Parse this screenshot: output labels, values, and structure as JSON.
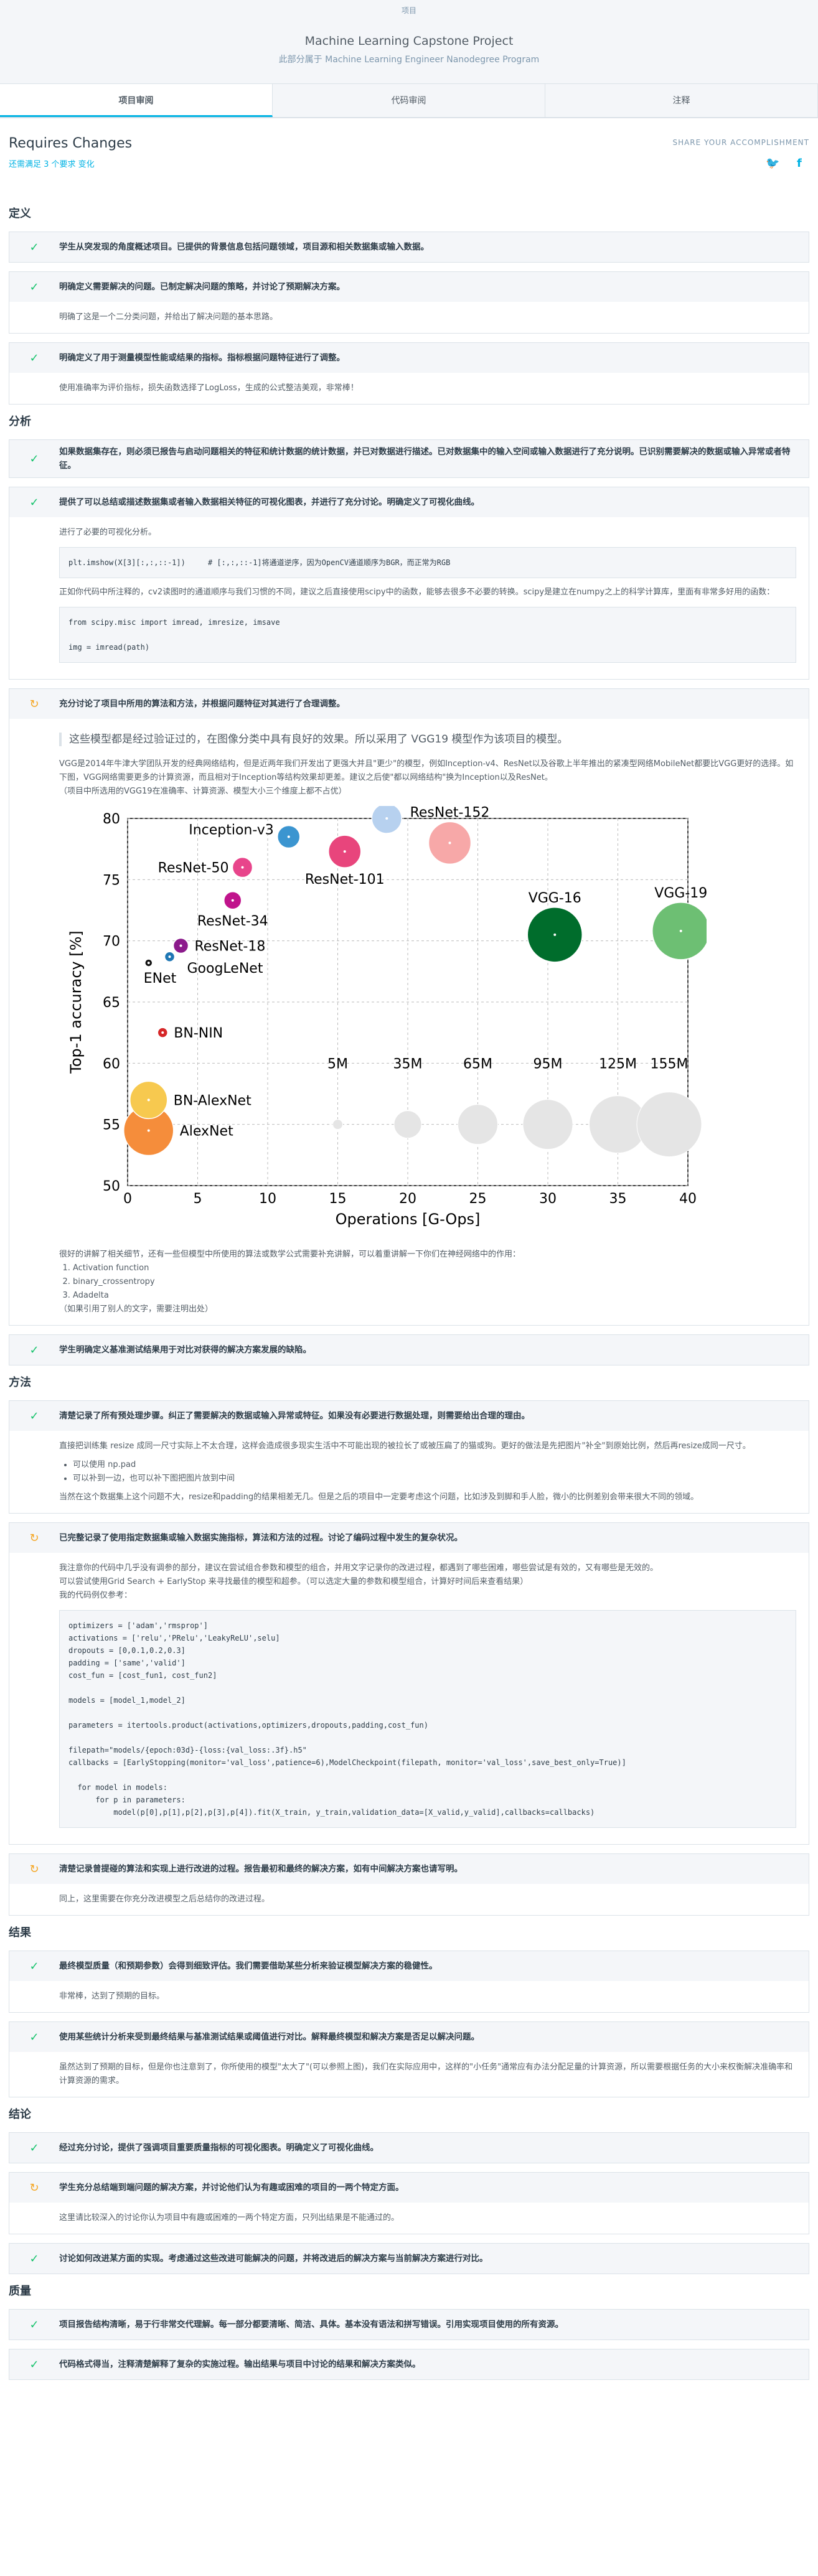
{
  "header": {
    "top": "项目",
    "title": "Machine Learning Capstone Project",
    "sub": "此部分属于 Machine Learning Engineer Nanodegree Program"
  },
  "tabs": [
    "项目审阅",
    "代码审阅",
    "注释"
  ],
  "status": {
    "title": "Requires Changes",
    "summary": "还需满足 3 个要求 变化",
    "share": "SHARE YOUR ACCOMPLISHMENT"
  },
  "sections": {
    "def": {
      "title": "定义",
      "i1": "学生从突发现的角度概述项目。已提供的背景信息包括问题领域，项目源和相关数据集或输入数据。",
      "i2": "明确定义需要解决的问题。已制定解决问题的策略，并讨论了预期解决方案。",
      "i2b": "明确了这是一个二分类问题，并给出了解决问题的基本思路。",
      "i3": "明确定义了用于测量模型性能或结果的指标。指标根据问题特征进行了调整。",
      "i3b": "使用准确率为评价指标，损失函数选择了LogLoss，生成的公式整洁美观，非常棒！"
    },
    "ana": {
      "title": "分析",
      "i1": "如果数据集存在，则必须已报告与启动问题相关的特征和统计数据的统计数据，并已对数据进行描述。已对数据集中的输入空间或输入数据进行了充分说明。已识别需要解决的数据或输入异常或者特征。",
      "i2": "提供了可以总结或描述数据集或者输入数据相关特征的可视化图表，并进行了充分讨论。明确定义了可视化曲线。",
      "i2b": "进行了必要的可视化分析。",
      "code1": "plt.imshow(X[3][:,:,::-1])     # [:,:,::-1]将通道逆序，因为OpenCV通道顺序为BGR，而正常为RGB",
      "i2c": "正如你代码中所注释的，cv2读图时的通道顺序与我们习惯的不同，建议之后直接使用scipy中的函数，能够去很多不必要的转换。scipy是建立在numpy之上的科学计算库，里面有非常多好用的函数：",
      "code2": "from scipy.misc import imread, imresize, imsave\n\nimg = imread(path)",
      "i3": "充分讨论了项目中所用的算法和方法，并根据问题特征对其进行了合理调整。",
      "quote": "这些模型都是经过验证过的，在图像分类中具有良好的效果。所以采用了 VGG19 模型作为该项目的模型。",
      "i3b": "VGG是2014年牛津大学团队开发的经典网络结构，但是近两年我们开发出了更强大并且\"更少\"的模型，例如Inception-v4、ResNet以及谷歌上半年推出的紧凑型网络MobileNet都要比VGG更好的选择。如下图，VGG网络需要更多的计算资源，而且相对于Inception等结构效果却更差。建议之后使\"都以网络结构\"换为Inception以及ResNet。",
      "i3c": "（项目中所选用的VGG19在准确率、计算资源、模型大小三个维度上都不占优）",
      "i3d": "很好的讲解了相关细节，还有一些但模型中所使用的算法或数学公式需要补充讲解，可以着重讲解一下你们在神经网络中的作用：",
      "list": [
        "Activation function",
        "binary_crossentropy",
        "Adadelta"
      ],
      "i3e": "（如果引用了别人的文字，需要注明出处）",
      "i4": "学生明确定义基准测试结果用于对比对获得的解决方案发展的缺陷。"
    },
    "meth": {
      "title": "方法",
      "i1": "清楚记录了所有预处理步骤。纠正了需要解决的数据或输入异常或特征。如果没有必要进行数据处理，则需要给出合理的理由。",
      "i1b": "直接把训练集 resize 成同一尺寸实际上不太合理，这样会造成很多现实生活中不可能出现的被拉长了或被压扁了的猫或狗。更好的做法是先把图片\"补全\"到原始比例，然后再resize成同一尺寸。",
      "l1": [
        "可以使用 np.pad",
        "可以补到一边，也可以补下图把图片放到中间"
      ],
      "i1c": "当然在这个数据集上这个问题不大，resize和padding的结果相差无几。但是之后的项目中一定要考虑这个问题，比如涉及到脚和手人脸，微小的比例差别会带来很大不同的领域。",
      "i2": "已完整记录了使用指定数据集或输入数据实施指标，算法和方法的过程。讨论了编码过程中发生的复杂状况。",
      "i2b": "我注意你的代码中几乎没有调参的部分，建议在尝试组合参数和模型的组合，并用文字记录你的改进过程，都遇到了哪些困难，哪些尝试是有效的，又有哪些是无效的。",
      "i2c": "可以尝试使用Grid Search + EarlyStop 来寻找最佳的模型和超参。（可以选定大量的参数和模型组合，计算好时间后来查看结果）",
      "i2d": "我的代码例仅参考：",
      "code3": "optimizers = ['adam','rmsprop']\nactivations = ['relu','PRelu','LeakyReLU',selu]\ndropouts = [0,0.1,0.2,0.3]\npadding = ['same','valid']\ncost_fun = [cost_fun1, cost_fun2]\n\nmodels = [model_1,model_2]\n\nparameters = itertools.product(activations,optimizers,dropouts,padding,cost_fun)\n\nfilepath=\"models/{epoch:03d}-{loss:{val_loss:.3f}.h5\"\ncallbacks = [EarlyStopping(monitor='val_loss',patience=6),ModelCheckpoint(filepath, monitor='val_loss',save_best_only=True)]\n\n  for model in models:\n      for p in parameters:\n          model(p[0],p[1],p[2],p[3],p[4]).fit(X_train, y_train,validation_data=[X_valid,y_valid],callbacks=callbacks)",
      "i3": "清楚记录曾提碰的算法和实现上进行改进的过程。报告最初和最终的解决方案，如有中间解决方案也请写明。",
      "i3b": "同上，这里需要在你充分改进模型之后总结你的改进过程。"
    },
    "res": {
      "title": "结果",
      "i1": "最终模型质量（和预期参数）会得到细致评估。我们需要借助某些分析来验证模型解决方案的稳健性。",
      "i1b": "非常棒，达到了预期的目标。",
      "i2": "使用某些统计分析来受到最终结果与基准测试结果或阈值进行对比。解释最终模型和解决方案是否足以解决问题。",
      "i2b": "虽然达到了预期的目标，但是你也注意到了，你所使用的模型\"太大了\"(可以参照上图)，我们在实际应用中，这样的\"小任务\"通常应有办法分配足量的计算资源，所以需要根据任务的大小来权衡解决准确率和计算资源的需求。"
    },
    "con": {
      "title": "结论",
      "i1": "经过充分讨论，提供了强调项目重要质量指标的可视化图表。明确定义了可视化曲线。",
      "i2": "学生充分总结端到端问题的解决方案，并讨论他们认为有趣或困难的项目的一两个特定方面。",
      "i2b": "这里请比较深入的讨论你认为项目中有趣或困难的一两个特定方面，只列出结果是不能通过的。",
      "i3": "讨论如何改进某方面的实现。考虑通过这些改进可能解决的问题，并将改进后的解决方案与当前解决方案进行对比。"
    },
    "qual": {
      "title": "质量",
      "i1": "项目报告结构清晰，易于行非常交代理解。每一部分都要清晰、简洁、具体。基本没有语法和拼写错误。引用实现项目使用的所有资源。",
      "i2": "代码格式得当，注释清楚解释了复杂的实施过程。输出结果与项目中讨论的结果和解决方案类似。"
    }
  },
  "chart_data": {
    "type": "scatter",
    "xlabel": "Operations [G-Ops]",
    "ylabel": "Top-1 accuracy [%]",
    "xlim": [
      0,
      40
    ],
    "ylim": [
      50,
      80
    ],
    "xticks": [
      0,
      5,
      10,
      15,
      20,
      25,
      30,
      35,
      40
    ],
    "yticks": [
      50,
      55,
      60,
      65,
      70,
      75,
      80
    ],
    "points": [
      {
        "name": "AlexNet",
        "x": 1.5,
        "y": 54.5,
        "size": 40,
        "color": "#f58d3b"
      },
      {
        "name": "BN-AlexNet",
        "x": 1.5,
        "y": 57,
        "size": 30,
        "color": "#f7c94f"
      },
      {
        "name": "BN-NIN",
        "x": 2.5,
        "y": 62.5,
        "size": 8,
        "color": "#d62728"
      },
      {
        "name": "ENet",
        "x": 1.5,
        "y": 68.2,
        "size": 6,
        "color": "#111111"
      },
      {
        "name": "GoogLeNet",
        "x": 3,
        "y": 68.7,
        "size": 8,
        "color": "#1f77b4"
      },
      {
        "name": "ResNet-18",
        "x": 3.8,
        "y": 69.6,
        "size": 12,
        "color": "#8b1a8b"
      },
      {
        "name": "ResNet-34",
        "x": 7.5,
        "y": 73.3,
        "size": 14,
        "color": "#c0148c"
      },
      {
        "name": "ResNet-50",
        "x": 8.2,
        "y": 76,
        "size": 16,
        "color": "#e8458b"
      },
      {
        "name": "Inception-v3",
        "x": 11.5,
        "y": 78.5,
        "size": 18,
        "color": "#3b95d0"
      },
      {
        "name": "ResNet-101",
        "x": 15.5,
        "y": 77.3,
        "size": 26,
        "color": "#e8457c"
      },
      {
        "name": "Inception-v4",
        "x": 18.5,
        "y": 80,
        "size": 24,
        "color": "#b7d1ef"
      },
      {
        "name": "ResNet-152",
        "x": 23,
        "y": 78,
        "size": 34,
        "color": "#f7a8a8"
      },
      {
        "name": "VGG-16",
        "x": 30.5,
        "y": 70.5,
        "size": 44,
        "color": "#006d2c"
      },
      {
        "name": "VGG-19",
        "x": 39.5,
        "y": 70.8,
        "size": 46,
        "color": "#6dbf73"
      }
    ],
    "size_legend": [
      {
        "label": "5M",
        "x": 15
      },
      {
        "label": "35M",
        "x": 20
      },
      {
        "label": "65M",
        "x": 25
      },
      {
        "label": "95M",
        "x": 30
      },
      {
        "label": "125M",
        "x": 35
      },
      {
        "label": "155M",
        "x": 40
      }
    ]
  }
}
